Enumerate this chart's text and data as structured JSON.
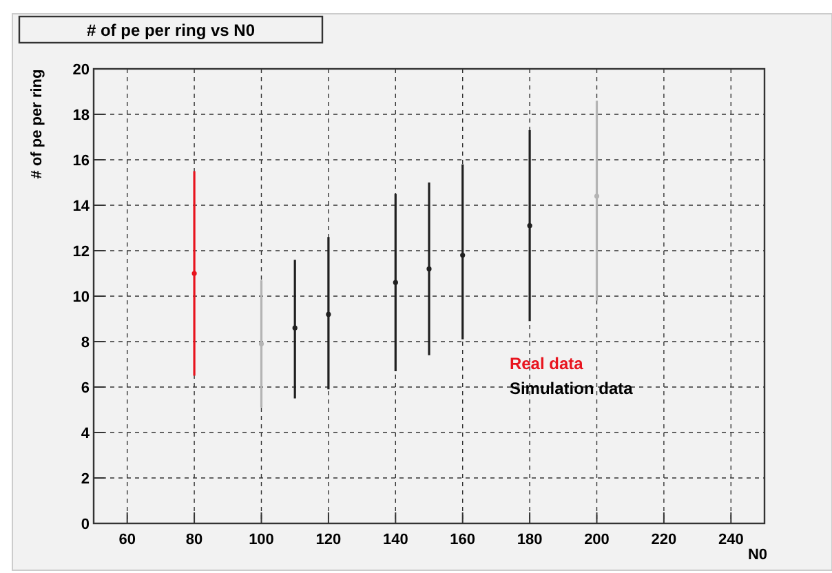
{
  "chart_data": {
    "type": "scatter",
    "title": "# of pe per ring vs N0",
    "xlabel": "N0",
    "ylabel": "# of pe per ring",
    "xlim": [
      50,
      250
    ],
    "xticks": [
      60,
      80,
      100,
      120,
      140,
      160,
      180,
      200,
      220,
      240
    ],
    "ylim": [
      0,
      20
    ],
    "yticks": [
      0,
      2,
      4,
      6,
      8,
      10,
      12,
      14,
      16,
      18,
      20
    ],
    "grid": true,
    "legend": "bottom right",
    "marker": "circle",
    "series": [
      {
        "name": "Real data",
        "color": "#e8141e",
        "x": [
          80
        ],
        "values": [
          11.0
        ],
        "errors": [
          [
            6.5,
            15.5
          ]
        ]
      },
      {
        "name": "Simulation data",
        "color": "#000000",
        "colors": [
          "#b4b4b4",
          "#202020",
          "#202020",
          "#202020",
          "#202020",
          "#202020",
          "#202020",
          "#b4b4b4"
        ],
        "x": [
          100,
          110,
          120,
          140,
          150,
          160,
          180,
          200
        ],
        "values": [
          7.9,
          8.6,
          9.2,
          10.6,
          11.2,
          11.8,
          13.1,
          14.4
        ],
        "errors": [
          [
            5.1,
            10.7
          ],
          [
            5.5,
            11.6
          ],
          [
            5.9,
            12.6
          ],
          [
            6.7,
            14.5
          ],
          [
            7.4,
            15.0
          ],
          [
            8.1,
            15.8
          ],
          [
            8.9,
            17.3
          ],
          [
            9.8,
            18.6
          ]
        ]
      }
    ]
  }
}
